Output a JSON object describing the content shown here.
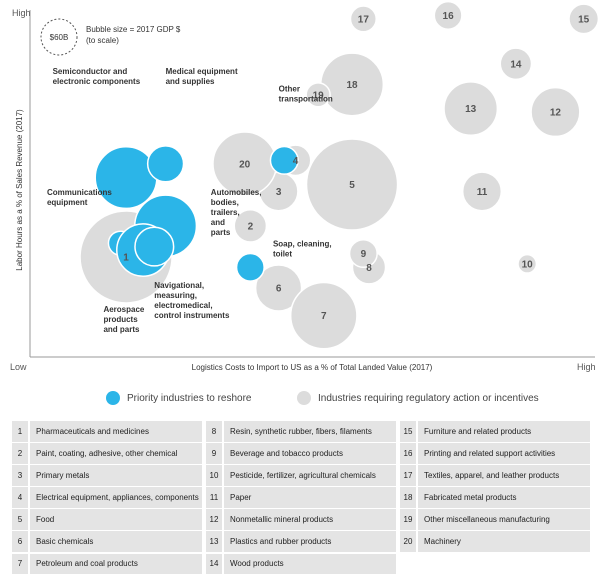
{
  "chart_data": {
    "type": "bubble",
    "x_axis": {
      "label": "Logistics Costs to Import to US as a % of Total Landed Value (2017)",
      "low": "Low",
      "high": "High"
    },
    "y_axis": {
      "label": "Labor Hours as a % of Sales Revenue (2017)",
      "low": "Low",
      "high": "High"
    },
    "size_legend": {
      "bubble_label": "$60B",
      "text_line1": "Bubble size = 2017 GDP $",
      "text_line2": "(to scale)"
    },
    "legend": [
      {
        "name": "Priority industries to reshore",
        "color": "#2bb5e8"
      },
      {
        "name": "Industries requiring regulatory action or incentives",
        "color": "#dcdcdc"
      }
    ],
    "colors": {
      "priority": "#2bb5e8",
      "other": "#dcdcdc",
      "axis": "#999999"
    },
    "bubbles": [
      {
        "id": "1",
        "label": "1",
        "x": 0.17,
        "y": 0.29,
        "r": 1.0,
        "group": "other"
      },
      {
        "id": "2",
        "label": "2",
        "x": 0.39,
        "y": 0.38,
        "r": 0.35,
        "group": "other"
      },
      {
        "id": "3",
        "label": "3",
        "x": 0.44,
        "y": 0.48,
        "r": 0.42,
        "group": "other"
      },
      {
        "id": "4",
        "label": "4",
        "x": 0.47,
        "y": 0.57,
        "r": 0.33,
        "group": "other"
      },
      {
        "id": "5",
        "label": "5",
        "x": 0.57,
        "y": 0.5,
        "r": 0.99,
        "group": "other"
      },
      {
        "id": "6",
        "label": "6",
        "x": 0.44,
        "y": 0.2,
        "r": 0.5,
        "group": "other"
      },
      {
        "id": "7",
        "label": "7",
        "x": 0.52,
        "y": 0.12,
        "r": 0.72,
        "group": "other"
      },
      {
        "id": "8",
        "label": "8",
        "x": 0.6,
        "y": 0.26,
        "r": 0.36,
        "group": "other"
      },
      {
        "id": "9",
        "label": "9",
        "x": 0.59,
        "y": 0.3,
        "r": 0.3,
        "group": "other"
      },
      {
        "id": "10",
        "label": "10",
        "x": 0.88,
        "y": 0.27,
        "r": 0.2,
        "group": "other"
      },
      {
        "id": "11",
        "label": "11",
        "x": 0.8,
        "y": 0.48,
        "r": 0.42,
        "group": "other"
      },
      {
        "id": "12",
        "label": "12",
        "x": 0.93,
        "y": 0.71,
        "r": 0.53,
        "group": "other"
      },
      {
        "id": "13",
        "label": "13",
        "x": 0.78,
        "y": 0.72,
        "r": 0.58,
        "group": "other"
      },
      {
        "id": "14",
        "label": "14",
        "x": 0.86,
        "y": 0.85,
        "r": 0.34,
        "group": "other"
      },
      {
        "id": "15",
        "label": "15",
        "x": 0.98,
        "y": 0.98,
        "r": 0.32,
        "group": "other"
      },
      {
        "id": "16",
        "label": "16",
        "x": 0.74,
        "y": 0.99,
        "r": 0.3,
        "group": "other"
      },
      {
        "id": "17",
        "label": "17",
        "x": 0.59,
        "y": 0.98,
        "r": 0.28,
        "group": "other"
      },
      {
        "id": "18",
        "label": "18",
        "x": 0.57,
        "y": 0.79,
        "r": 0.68,
        "group": "other"
      },
      {
        "id": "19",
        "label": "19",
        "x": 0.51,
        "y": 0.76,
        "r": 0.26,
        "group": "other"
      },
      {
        "id": "20",
        "label": "20",
        "x": 0.38,
        "y": 0.56,
        "r": 0.69,
        "group": "other"
      },
      {
        "id": "semiconductor",
        "x": 0.17,
        "y": 0.52,
        "r": 0.67,
        "group": "priority"
      },
      {
        "id": "medical",
        "x": 0.24,
        "y": 0.56,
        "r": 0.39,
        "group": "priority"
      },
      {
        "id": "communications",
        "x": 0.16,
        "y": 0.33,
        "r": 0.26,
        "group": "priority"
      },
      {
        "id": "autos",
        "x": 0.24,
        "y": 0.38,
        "r": 0.67,
        "group": "priority"
      },
      {
        "id": "aerospace",
        "x": 0.2,
        "y": 0.31,
        "r": 0.57,
        "group": "priority"
      },
      {
        "id": "navigational",
        "x": 0.22,
        "y": 0.32,
        "r": 0.42,
        "group": "priority"
      },
      {
        "id": "soap",
        "x": 0.39,
        "y": 0.26,
        "r": 0.3,
        "group": "priority"
      },
      {
        "id": "other_transport",
        "x": 0.45,
        "y": 0.57,
        "r": 0.3,
        "group": "priority"
      }
    ],
    "annotations": [
      {
        "id": "semiconductor",
        "lines": [
          "Semiconductor and",
          "electronic components"
        ],
        "anchor": "start",
        "x": 0.04,
        "y": 0.82
      },
      {
        "id": "medical",
        "lines": [
          "Medical equipment",
          "and supplies"
        ],
        "anchor": "start",
        "x": 0.24,
        "y": 0.82
      },
      {
        "id": "other_transport",
        "lines": [
          "Other",
          "transportation"
        ],
        "anchor": "start",
        "x": 0.44,
        "y": 0.77
      },
      {
        "id": "communications",
        "lines": [
          "Communications",
          "equipment"
        ],
        "anchor": "start",
        "x": 0.03,
        "y": 0.47
      },
      {
        "id": "autos",
        "lines": [
          "Automobiles,",
          "bodies,",
          "trailers,",
          "and",
          "parts"
        ],
        "anchor": "start",
        "x": 0.32,
        "y": 0.47
      },
      {
        "id": "soap",
        "lines": [
          "Soap, cleaning,",
          "toilet"
        ],
        "anchor": "start",
        "x": 0.43,
        "y": 0.32
      },
      {
        "id": "navigational",
        "lines": [
          "Navigational,",
          "measuring,",
          "electromedical,",
          "control instruments"
        ],
        "anchor": "start",
        "x": 0.22,
        "y": 0.2
      },
      {
        "id": "aerospace",
        "lines": [
          "Aerospace",
          "products",
          "and parts"
        ],
        "anchor": "start",
        "x": 0.13,
        "y": 0.13
      }
    ]
  },
  "industries": [
    {
      "num": "1",
      "name": "Pharmaceuticals and medicines"
    },
    {
      "num": "2",
      "name": "Paint, coating, adhesive, other chemical"
    },
    {
      "num": "3",
      "name": "Primary metals"
    },
    {
      "num": "4",
      "name": "Electrical equipment, appliances, components"
    },
    {
      "num": "5",
      "name": "Food"
    },
    {
      "num": "6",
      "name": "Basic chemicals"
    },
    {
      "num": "7",
      "name": "Petroleum and coal products"
    },
    {
      "num": "8",
      "name": "Resin, synthetic rubber, fibers, filaments"
    },
    {
      "num": "9",
      "name": "Beverage and tobacco products"
    },
    {
      "num": "10",
      "name": "Pesticide, fertilizer, agricultural chemicals"
    },
    {
      "num": "11",
      "name": "Paper"
    },
    {
      "num": "12",
      "name": "Nonmetallic mineral products"
    },
    {
      "num": "13",
      "name": "Plastics and rubber products"
    },
    {
      "num": "14",
      "name": "Wood products"
    },
    {
      "num": "15",
      "name": "Furniture and related products"
    },
    {
      "num": "16",
      "name": "Printing and related support activities"
    },
    {
      "num": "17",
      "name": "Textiles, apparel, and leather products"
    },
    {
      "num": "18",
      "name": "Fabricated metal products"
    },
    {
      "num": "19",
      "name": "Other miscellaneous manufacturing"
    },
    {
      "num": "20",
      "name": "Machinery"
    }
  ]
}
